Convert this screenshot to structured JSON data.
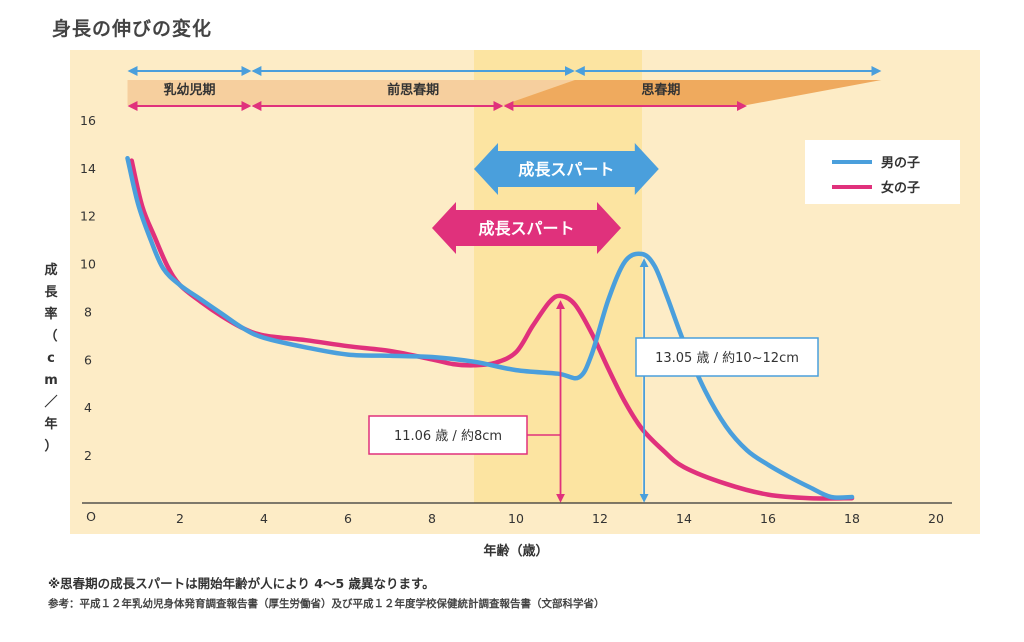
{
  "title": "身長の伸びの変化",
  "notes": {
    "line1": "※思春期の成長スパートは開始年齢が人により 4〜5 歳異なります。",
    "line2": "参考：平成１２年乳幼児身体発育調査報告書（厚生労働省）及び平成１２年度学校保健統計調査報告書（文部科学省）"
  },
  "chart_data": {
    "type": "line",
    "title": "身長の伸びの変化",
    "xlabel": "年齢（歳）",
    "ylabel": "成長率（cm／年）",
    "origin_label": "O",
    "xlim": [
      0,
      20
    ],
    "ylim": [
      0,
      17
    ],
    "xticks": [
      2,
      4,
      6,
      8,
      10,
      12,
      14,
      16,
      18,
      20
    ],
    "yticks": [
      2,
      4,
      6,
      8,
      10,
      12,
      14,
      16
    ],
    "grid": false,
    "legend_position": "top-right",
    "highlight_band": [
      9,
      13
    ],
    "series": [
      {
        "name": "男の子",
        "color": "#4a9fdc",
        "x": [
          0.75,
          1,
          1.3,
          1.6,
          2,
          2.5,
          3,
          3.5,
          4,
          5,
          6,
          7,
          8,
          9,
          10,
          11,
          11.5,
          11.8,
          12.2,
          12.6,
          13,
          13.3,
          13.6,
          14,
          14.5,
          15,
          15.5,
          16,
          16.5,
          17,
          17.5,
          18
        ],
        "values": [
          14.4,
          12.5,
          11,
          9.8,
          9.1,
          8.5,
          7.9,
          7.3,
          6.9,
          6.5,
          6.2,
          6.15,
          6.1,
          5.9,
          5.55,
          5.4,
          5.25,
          6.2,
          8.5,
          10.1,
          10.4,
          9.9,
          8.6,
          6.7,
          4.7,
          3.2,
          2.2,
          1.6,
          1.1,
          0.65,
          0.25,
          0.25
        ]
      },
      {
        "name": "女の子",
        "color": "#e0317c",
        "x": [
          0.85,
          1.1,
          1.4,
          1.7,
          2,
          2.5,
          3,
          3.5,
          4,
          5,
          6,
          7,
          8,
          8.5,
          9,
          9.5,
          10,
          10.4,
          10.8,
          11.06,
          11.4,
          11.8,
          12.2,
          12.6,
          13,
          13.5,
          14,
          15,
          16,
          17,
          18
        ],
        "values": [
          14.3,
          12.4,
          11.1,
          9.9,
          9.1,
          8.4,
          7.8,
          7.3,
          7.0,
          6.8,
          6.55,
          6.35,
          6.0,
          5.8,
          5.75,
          5.85,
          6.3,
          7.4,
          8.4,
          8.65,
          8.3,
          7.1,
          5.6,
          4.2,
          3.1,
          2.2,
          1.5,
          0.8,
          0.35,
          0.2,
          0.2
        ]
      }
    ],
    "periods": [
      {
        "label": "乳幼児期",
        "start": 0.75,
        "end": 3.7
      },
      {
        "label": "前思春期",
        "start": 3.7,
        "end": 11.4
      },
      {
        "label": "思春期",
        "start": 11.4,
        "end": 18.7
      }
    ],
    "pink_period_arrows": [
      [
        0.75,
        3.7
      ],
      [
        3.7,
        9.7
      ],
      [
        9.7,
        15.5
      ]
    ],
    "growth_spurts": [
      {
        "label": "成長スパート",
        "series": "男の子",
        "start": 9.0,
        "end": 13.4,
        "color": "#4a9fdc"
      },
      {
        "label": "成長スパート",
        "series": "女の子",
        "start": 8.0,
        "end": 12.5,
        "color": "#e0317c"
      }
    ],
    "annotations": [
      {
        "text": "13.05 歳 / 約10~12cm",
        "series": "男の子",
        "x": 13.05,
        "peak": 10.4,
        "color": "#4a9fdc"
      },
      {
        "text": "11.06 歳 / 約8cm",
        "series": "女の子",
        "x": 11.06,
        "peak": 8.65,
        "color": "#e0317c"
      }
    ]
  }
}
